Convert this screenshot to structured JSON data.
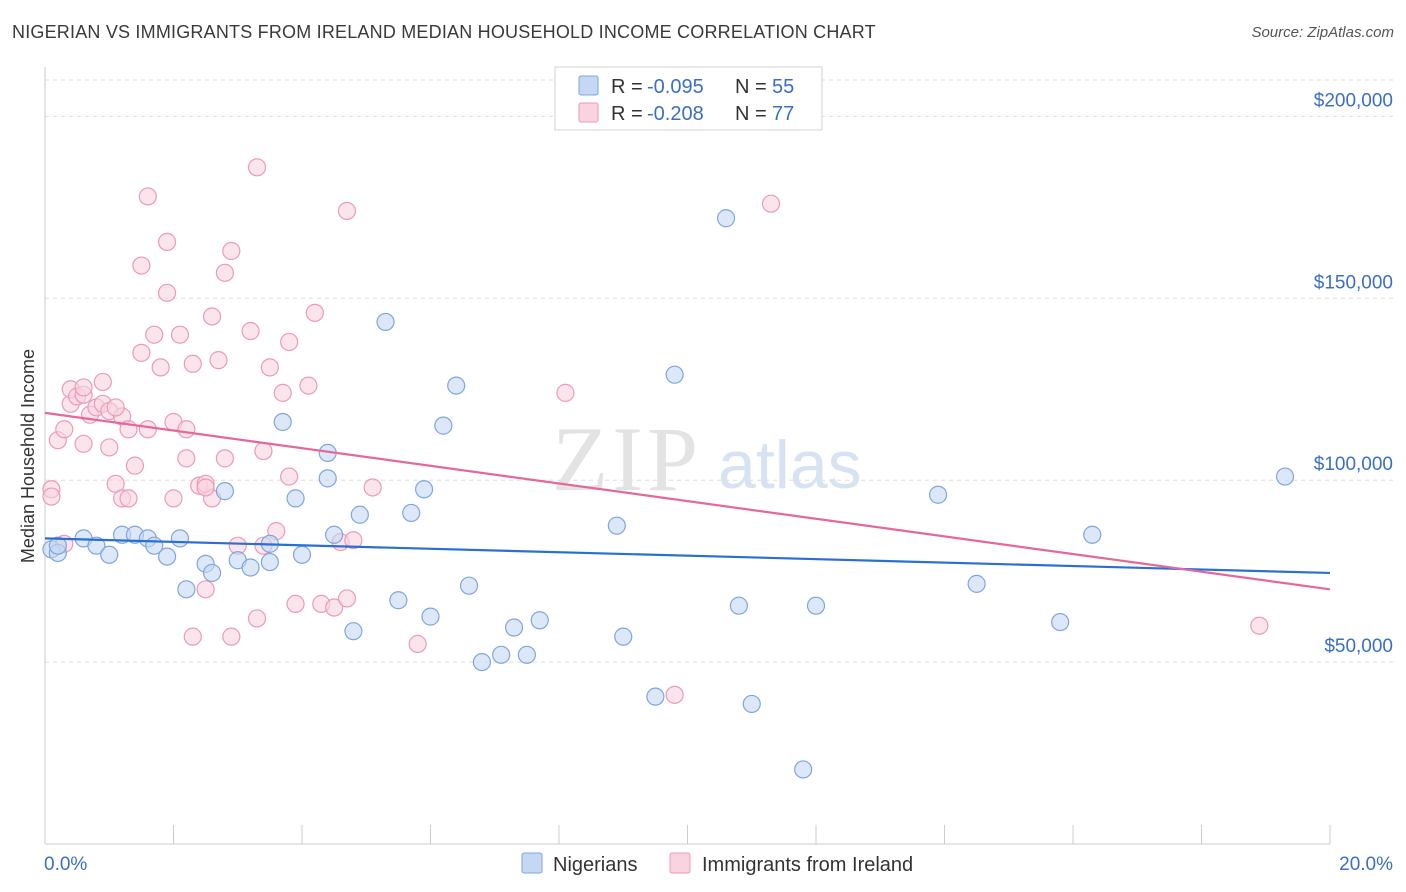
{
  "title": "NIGERIAN VS IMMIGRANTS FROM IRELAND MEDIAN HOUSEHOLD INCOME CORRELATION CHART",
  "source": "Source: ZipAtlas.com",
  "watermark": {
    "zip": "ZIP",
    "atlas": "atlas"
  },
  "colors": {
    "blue_stroke": "#7fa6dc",
    "blue_fill": "#c5d8f3",
    "blue_line": "#2a6fd1",
    "pink_stroke": "#ec9ab8",
    "pink_fill": "#f9d3e0",
    "pink_line": "#e5689a",
    "tick_text": "#3a6fc4",
    "grid": "#dddddd"
  },
  "legend": {
    "rows": [
      {
        "r_label": "R =",
        "r_value": "-0.095",
        "n_label": "N =",
        "n_value": "55"
      },
      {
        "r_label": "R =",
        "r_value": "-0.208",
        "n_label": "N =",
        "n_value": "77"
      }
    ]
  },
  "bottom_legend": [
    "Nigerians",
    "Immigrants from Ireland"
  ],
  "chart_data": {
    "type": "scatter",
    "ylabel": "Median Household Income",
    "xlim": [
      0,
      20
    ],
    "ylim": [
      0,
      210000
    ],
    "x_tick_labels": [
      "0.0%",
      "20.0%"
    ],
    "y_ticks": [
      50000,
      100000,
      150000,
      200000
    ],
    "y_tick_labels": [
      "$50,000",
      "$100,000",
      "$150,000",
      "$200,000"
    ],
    "grid": "horizontal dashed",
    "legend_position": "top-center",
    "series": [
      {
        "name": "Nigerians",
        "color": "#7fa6dc",
        "trend": {
          "x": [
            0,
            20
          ],
          "y": [
            84000,
            74500
          ]
        },
        "points": [
          [
            0.1,
            81000
          ],
          [
            0.2,
            80000
          ],
          [
            0.6,
            84000
          ],
          [
            0.8,
            82000
          ],
          [
            1.0,
            79500
          ],
          [
            1.2,
            85000
          ],
          [
            1.4,
            85000
          ],
          [
            1.6,
            84000
          ],
          [
            1.7,
            82000
          ],
          [
            1.9,
            79000
          ],
          [
            2.1,
            84000
          ],
          [
            2.2,
            70000
          ],
          [
            2.5,
            77000
          ],
          [
            2.6,
            74500
          ],
          [
            2.8,
            97000
          ],
          [
            3.0,
            78000
          ],
          [
            3.2,
            76000
          ],
          [
            3.5,
            82500
          ],
          [
            3.5,
            77500
          ],
          [
            3.7,
            116000
          ],
          [
            3.9,
            95000
          ],
          [
            4.0,
            79500
          ],
          [
            4.4,
            100500
          ],
          [
            4.4,
            107500
          ],
          [
            4.5,
            85000
          ],
          [
            4.8,
            58500
          ],
          [
            4.9,
            90500
          ],
          [
            5.3,
            143500
          ],
          [
            5.5,
            67000
          ],
          [
            5.7,
            91000
          ],
          [
            5.9,
            97500
          ],
          [
            6.0,
            62500
          ],
          [
            6.2,
            115000
          ],
          [
            6.4,
            126000
          ],
          [
            6.6,
            71000
          ],
          [
            6.8,
            50000
          ],
          [
            7.1,
            52000
          ],
          [
            7.3,
            59500
          ],
          [
            7.5,
            52000
          ],
          [
            7.7,
            61500
          ],
          [
            8.9,
            87500
          ],
          [
            9.0,
            57000
          ],
          [
            9.5,
            40500
          ],
          [
            9.8,
            129000
          ],
          [
            10.6,
            172000
          ],
          [
            10.8,
            65500
          ],
          [
            11.0,
            38500
          ],
          [
            11.8,
            20500
          ],
          [
            12.0,
            65500
          ],
          [
            13.9,
            96000
          ],
          [
            14.5,
            71500
          ],
          [
            15.8,
            61000
          ],
          [
            16.3,
            85000
          ],
          [
            19.3,
            101000
          ],
          [
            0.2,
            82000
          ]
        ]
      },
      {
        "name": "Immigrants from Ireland",
        "color": "#ec9ab8",
        "trend": {
          "x": [
            0,
            20
          ],
          "y": [
            118500,
            70000
          ]
        },
        "points": [
          [
            0.1,
            97500
          ],
          [
            0.1,
            95500
          ],
          [
            0.2,
            82000
          ],
          [
            0.2,
            111000
          ],
          [
            0.3,
            114000
          ],
          [
            0.4,
            121000
          ],
          [
            0.4,
            125000
          ],
          [
            0.5,
            123000
          ],
          [
            0.6,
            110000
          ],
          [
            0.6,
            123500
          ],
          [
            0.7,
            118000
          ],
          [
            0.8,
            120000
          ],
          [
            0.9,
            127000
          ],
          [
            0.9,
            121000
          ],
          [
            1.0,
            109000
          ],
          [
            1.0,
            119000
          ],
          [
            1.1,
            99000
          ],
          [
            1.2,
            117500
          ],
          [
            1.2,
            95000
          ],
          [
            1.3,
            95000
          ],
          [
            1.3,
            114000
          ],
          [
            1.4,
            104000
          ],
          [
            1.5,
            159000
          ],
          [
            1.5,
            135000
          ],
          [
            1.6,
            178000
          ],
          [
            1.6,
            114000
          ],
          [
            1.7,
            140000
          ],
          [
            1.8,
            131000
          ],
          [
            1.9,
            151500
          ],
          [
            1.9,
            165500
          ],
          [
            2.0,
            116000
          ],
          [
            2.0,
            95000
          ],
          [
            2.1,
            140000
          ],
          [
            2.2,
            114000
          ],
          [
            2.2,
            106000
          ],
          [
            2.3,
            132000
          ],
          [
            2.3,
            57000
          ],
          [
            2.4,
            98500
          ],
          [
            2.5,
            99000
          ],
          [
            2.5,
            70000
          ],
          [
            2.6,
            95000
          ],
          [
            2.6,
            145000
          ],
          [
            2.7,
            133000
          ],
          [
            2.8,
            157000
          ],
          [
            2.8,
            106000
          ],
          [
            2.9,
            163000
          ],
          [
            2.9,
            57000
          ],
          [
            3.0,
            82000
          ],
          [
            3.2,
            141000
          ],
          [
            3.3,
            186000
          ],
          [
            3.3,
            62000
          ],
          [
            3.4,
            108000
          ],
          [
            3.5,
            131000
          ],
          [
            3.6,
            86000
          ],
          [
            3.7,
            124000
          ],
          [
            3.8,
            138000
          ],
          [
            3.8,
            101000
          ],
          [
            3.9,
            66000
          ],
          [
            4.1,
            126000
          ],
          [
            4.2,
            146000
          ],
          [
            4.3,
            66000
          ],
          [
            4.5,
            65000
          ],
          [
            4.6,
            83000
          ],
          [
            4.7,
            67500
          ],
          [
            4.7,
            174000
          ],
          [
            4.8,
            83500
          ],
          [
            5.1,
            98000
          ],
          [
            5.8,
            55000
          ],
          [
            8.1,
            124000
          ],
          [
            9.8,
            41000
          ],
          [
            11.3,
            176000
          ],
          [
            18.9,
            60000
          ],
          [
            0.3,
            82500
          ],
          [
            1.1,
            120000
          ],
          [
            2.5,
            98000
          ],
          [
            3.4,
            82000
          ],
          [
            0.6,
            125500
          ]
        ]
      }
    ]
  }
}
